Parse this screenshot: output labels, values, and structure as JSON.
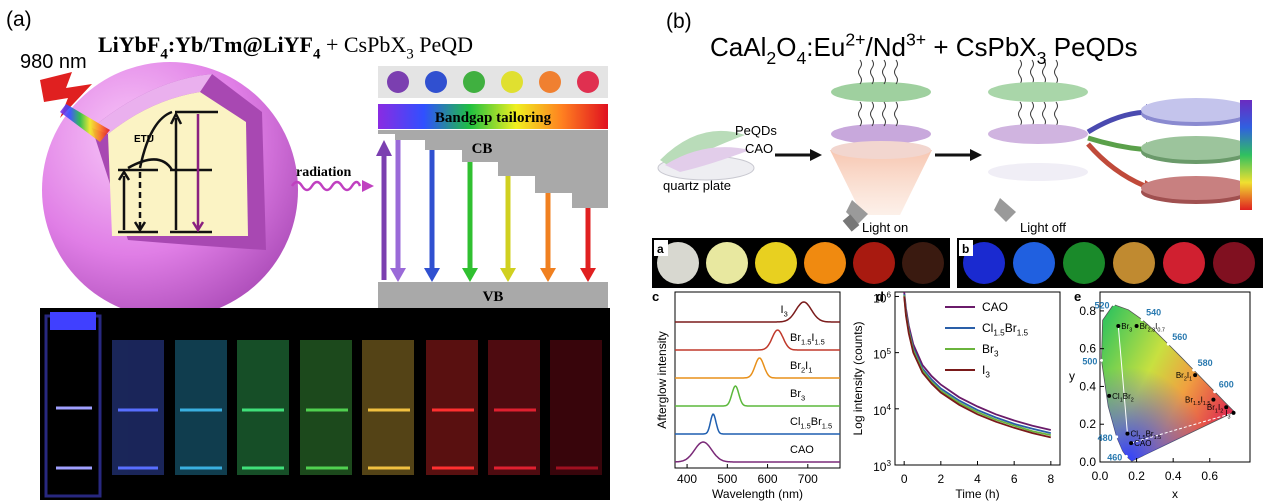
{
  "panel_a": {
    "label": "(a)",
    "excitation": "980 nm",
    "title": [
      "LiYbF",
      {
        "sub": "4"
      },
      ":Yb/Tm@LiYF",
      {
        "sub": "4"
      }
    ],
    "title_suffix": [
      " + CsPbX",
      {
        "sub": "3"
      },
      " PeQD"
    ],
    "energy_transfer": "ETU",
    "process": "radiation",
    "bandgap": "Bandgap tailoring",
    "conduction_band": "CB",
    "valence_band": "VB"
  },
  "panel_b": {
    "label": "(b)",
    "title": [
      "CaAl",
      {
        "sub": "2"
      },
      "O",
      {
        "sub": "4"
      },
      ":Eu",
      {
        "sup": "2+"
      },
      "/Nd",
      {
        "sup": "3+"
      },
      " + CsPbX",
      {
        "sub": "3"
      },
      " PeQDs"
    ],
    "layers": [
      "PeQDs",
      "CAO"
    ],
    "substrate": "quartz plate",
    "light_on": "Light on",
    "light_off": "Light off",
    "photo_a": "a",
    "photo_b": "b"
  },
  "spectra": {
    "label": "c",
    "ylabel": "Afterglow intensity",
    "xlabel": "Wavelength (nm)",
    "xlim": [
      370,
      780
    ],
    "xticks": [
      400,
      500,
      600,
      700
    ],
    "series": [
      {
        "name": [
          "I",
          {
            "sub": "3"
          }
        ],
        "color": "#7b1c1c",
        "peak": 690,
        "fwhm": 45
      },
      {
        "name": [
          "Br",
          {
            "sub": "1.5"
          },
          "I",
          {
            "sub": "1.5"
          }
        ],
        "color": "#c0392b",
        "peak": 625,
        "fwhm": 32
      },
      {
        "name": [
          "Br",
          {
            "sub": "2"
          },
          "I",
          {
            "sub": "1"
          }
        ],
        "color": "#e8901a",
        "peak": 580,
        "fwhm": 26
      },
      {
        "name": [
          "Br",
          {
            "sub": "3"
          }
        ],
        "color": "#5cb83c",
        "peak": 520,
        "fwhm": 20
      },
      {
        "name": [
          "Cl",
          {
            "sub": "1.5"
          },
          "Br",
          {
            "sub": "1.5"
          }
        ],
        "color": "#1f5fb0",
        "peak": 465,
        "fwhm": 16
      },
      {
        "name": "CAO",
        "color": "#7a2a78",
        "peak": 440,
        "fwhm": 50
      }
    ]
  },
  "decay": {
    "label": "d",
    "ylabel": "Log intensity (counts)",
    "xlabel": "Time (h)",
    "xlim": [
      -0.5,
      8.5
    ],
    "xticks": [
      0,
      2,
      4,
      6,
      8
    ],
    "ylim": [
      1000,
      1200000
    ],
    "log": true,
    "yticks": [
      {
        "value": 1000,
        "label": [
          "10",
          {
            "sup": "3"
          }
        ]
      },
      {
        "value": 10000,
        "label": [
          "10",
          {
            "sup": "4"
          }
        ]
      },
      {
        "value": 100000,
        "label": [
          "10",
          {
            "sup": "5"
          }
        ]
      },
      {
        "value": 1000000,
        "label": [
          "10",
          {
            "sup": "6"
          }
        ]
      }
    ],
    "x": [
      0,
      0.1,
      0.25,
      0.5,
      1,
      1.5,
      2,
      3,
      4,
      5,
      6,
      7,
      8
    ],
    "series": [
      {
        "name": "CAO",
        "color": "#6a1b6a",
        "values": [
          1200000,
          600000,
          300000,
          140000,
          60000,
          38000,
          27000,
          16000,
          11000,
          8000,
          6200,
          5000,
          4200
        ]
      },
      {
        "name": [
          "Cl",
          {
            "sub": "1.5"
          },
          "Br",
          {
            "sub": "1.5"
          }
        ],
        "color": "#2a5fa8",
        "values": [
          1100000,
          520000,
          260000,
          120000,
          52000,
          33000,
          23000,
          14000,
          9500,
          7000,
          5400,
          4400,
          3700
        ]
      },
      {
        "name": [
          "Br",
          {
            "sub": "3"
          }
        ],
        "color": "#6ab43c",
        "values": [
          1050000,
          480000,
          240000,
          110000,
          48000,
          30000,
          21000,
          12800,
          8700,
          6400,
          5000,
          4000,
          3400
        ]
      },
      {
        "name": [
          "I",
          {
            "sub": "3"
          }
        ],
        "color": "#7a1a1a",
        "values": [
          1000000,
          450000,
          220000,
          100000,
          44000,
          28000,
          19500,
          11800,
          8000,
          5900,
          4600,
          3700,
          3100
        ]
      }
    ]
  },
  "cie": {
    "label": "e",
    "xlabel": "x",
    "ylabel": "y",
    "xlim": [
      0,
      0.82
    ],
    "ylim": [
      0,
      0.9
    ],
    "xticks": [
      {
        "value": 0,
        "label": "0.0"
      },
      0.2,
      0.4,
      0.6
    ],
    "yticks": [
      {
        "value": 0,
        "label": "0.0"
      },
      0.2,
      0.4,
      0.6,
      0.8
    ],
    "locus": [
      {
        "x": 0.174,
        "y": 0.005
      },
      {
        "x": 0.144,
        "y": 0.03,
        "label": 460
      },
      {
        "x": 0.124,
        "y": 0.058
      },
      {
        "x": 0.091,
        "y": 0.133,
        "label": 480
      },
      {
        "x": 0.045,
        "y": 0.295
      },
      {
        "x": 0.008,
        "y": 0.538,
        "label": 500
      },
      {
        "x": 0.014,
        "y": 0.75
      },
      {
        "x": 0.074,
        "y": 0.834,
        "label": 520
      },
      {
        "x": 0.155,
        "y": 0.806
      },
      {
        "x": 0.23,
        "y": 0.754,
        "label": 540
      },
      {
        "x": 0.302,
        "y": 0.692
      },
      {
        "x": 0.373,
        "y": 0.624,
        "label": 560
      },
      {
        "x": 0.444,
        "y": 0.555
      },
      {
        "x": 0.512,
        "y": 0.487,
        "label": 580
      },
      {
        "x": 0.575,
        "y": 0.424
      },
      {
        "x": 0.627,
        "y": 0.372,
        "label": 600
      },
      {
        "x": 0.691,
        "y": 0.308
      },
      {
        "x": 0.735,
        "y": 0.265
      }
    ],
    "points": [
      {
        "name": [
          "Br",
          {
            "sub": "3"
          }
        ],
        "x": 0.1,
        "y": 0.72
      },
      {
        "name": [
          "Br",
          {
            "sub": "2.3"
          },
          "I",
          {
            "sub": "0.7"
          }
        ],
        "x": 0.2,
        "y": 0.72
      },
      {
        "name": [
          "Br",
          {
            "sub": "2"
          },
          "I",
          {
            "sub": "1"
          }
        ],
        "x": 0.52,
        "y": 0.46
      },
      {
        "name": [
          "Cl",
          {
            "sub": "1"
          },
          "Br",
          {
            "sub": "2"
          }
        ],
        "x": 0.05,
        "y": 0.35
      },
      {
        "name": [
          "Cl",
          {
            "sub": "1.5"
          },
          "Br",
          {
            "sub": "1.5"
          }
        ],
        "x": 0.15,
        "y": 0.15
      },
      {
        "name": "CAO",
        "x": 0.17,
        "y": 0.1
      },
      {
        "name": [
          "Br",
          {
            "sub": "1.5"
          },
          "I",
          {
            "sub": "1.5"
          }
        ],
        "x": 0.62,
        "y": 0.33
      },
      {
        "name": [
          "Br",
          {
            "sub": "1"
          },
          "I",
          {
            "sub": "2"
          }
        ],
        "x": 0.69,
        "y": 0.29
      },
      {
        "name": [
          "I",
          {
            "sub": "3"
          }
        ],
        "x": 0.73,
        "y": 0.26
      }
    ]
  }
}
